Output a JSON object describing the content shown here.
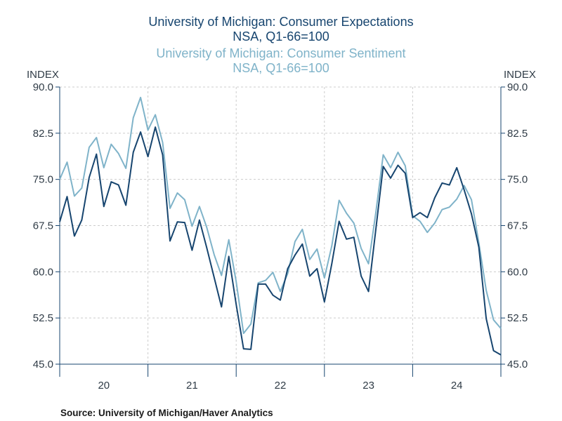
{
  "colors": {
    "expectations": "#17456f",
    "sentiment": "#7fb3c9",
    "grid": "#cccccc",
    "axis": "#17456f"
  },
  "chart_data": {
    "type": "line",
    "title_lines": [
      {
        "text": "University of Michigan: Consumer Expectations",
        "series": 0
      },
      {
        "text": "NSA, Q1-66=100",
        "series": 0
      },
      {
        "text": "University of Michigan: Consumer Sentiment",
        "series": 1
      },
      {
        "text": "NSA, Q1-66=100",
        "series": 1
      }
    ],
    "ylabel_left": "INDEX",
    "ylabel_right": "INDEX",
    "ylim": [
      45,
      90
    ],
    "yticks": [
      "45.0",
      "52.5",
      "60.0",
      "67.5",
      "75.0",
      "82.5",
      "90.0"
    ],
    "x_start": 2020.0,
    "x_end": 2025.0,
    "x_tick_labels": [
      "20",
      "21",
      "22",
      "23",
      "24"
    ],
    "grid": true,
    "x_step": 0.0833333,
    "series": [
      {
        "name": "University of Michigan: Consumer Expectations",
        "values": [
          68.1,
          72.2,
          65.8,
          68.4,
          75.3,
          79.1,
          70.6,
          74.6,
          74.1,
          70.8,
          79.4,
          82.7,
          78.7,
          83.5,
          79.0,
          65.0,
          68.1,
          68.0,
          63.5,
          68.4,
          63.9,
          59.1,
          54.3,
          62.5,
          54.7,
          47.5,
          47.4,
          58.0,
          58.0,
          56.2,
          55.4,
          60.5,
          62.7,
          64.5,
          59.3,
          60.5,
          55.1,
          61.3,
          68.2,
          65.3,
          65.6,
          59.3,
          56.8,
          67.0,
          77.1,
          75.2,
          77.3,
          76.0,
          68.8,
          69.6,
          68.8,
          72.0,
          74.4,
          74.1,
          76.9,
          73.3,
          69.4,
          64.0,
          52.4,
          47.2,
          46.5
        ]
      },
      {
        "name": "University of Michigan: Consumer Sentiment",
        "values": [
          75.0,
          77.8,
          72.3,
          73.6,
          80.2,
          81.8,
          76.9,
          80.7,
          79.2,
          76.8,
          85.0,
          88.3,
          83.0,
          85.5,
          81.0,
          70.3,
          72.8,
          71.7,
          67.4,
          70.6,
          67.2,
          62.8,
          59.4,
          65.2,
          58.4,
          50.0,
          51.5,
          58.2,
          58.6,
          59.9,
          56.8,
          59.7,
          64.9,
          66.9,
          62.0,
          63.7,
          59.0,
          64.2,
          71.6,
          69.5,
          67.9,
          63.8,
          61.3,
          69.7,
          79.0,
          76.9,
          79.4,
          77.2,
          69.1,
          68.2,
          66.4,
          67.9,
          70.1,
          70.5,
          71.8,
          74.0,
          71.7,
          64.7,
          57.0,
          52.2,
          50.8
        ]
      }
    ],
    "source": "Source:  University of Michigan/Haver Analytics"
  }
}
